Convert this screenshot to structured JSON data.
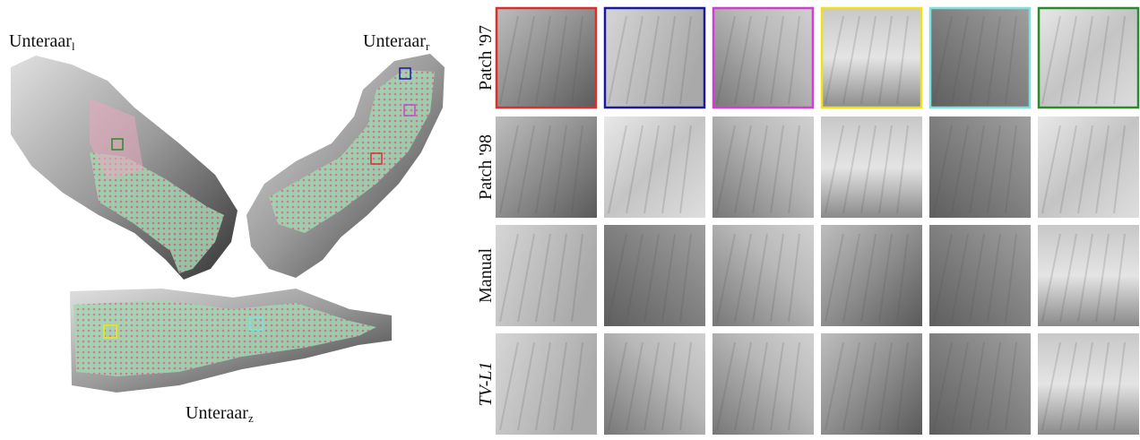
{
  "maps": [
    {
      "name": "Unteraar",
      "subscript": "l"
    },
    {
      "name": "Unteraar",
      "subscript": "r"
    },
    {
      "name": "Unteraar",
      "subscript": "z"
    }
  ],
  "rows": [
    {
      "label": "Patch '97"
    },
    {
      "label": "Patch '98"
    },
    {
      "label": "Manual"
    },
    {
      "label": "TV-L1"
    }
  ]
}
